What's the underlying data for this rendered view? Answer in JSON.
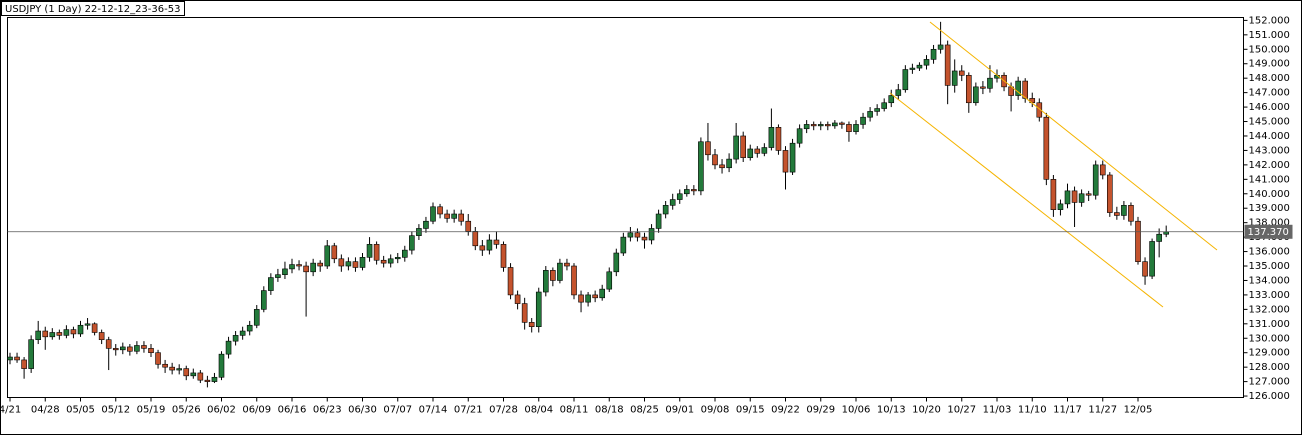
{
  "chart_data": {
    "type": "candlestick",
    "title": "USDJPY (1 Day) 22-12-12_23-36-53",
    "categories": [
      "4/21",
      null,
      null,
      null,
      null,
      "04/28",
      null,
      null,
      null,
      null,
      "05/05",
      null,
      null,
      null,
      null,
      "05/12",
      null,
      null,
      null,
      null,
      "05/19",
      null,
      null,
      null,
      null,
      "05/26",
      null,
      null,
      null,
      null,
      "06/02",
      null,
      null,
      null,
      null,
      "06/09",
      null,
      null,
      null,
      null,
      "06/16",
      null,
      null,
      null,
      null,
      "06/23",
      null,
      null,
      null,
      null,
      "06/30",
      null,
      null,
      null,
      null,
      "07/07",
      null,
      null,
      null,
      null,
      "07/14",
      null,
      null,
      null,
      null,
      "07/21",
      null,
      null,
      null,
      null,
      "07/28",
      null,
      null,
      null,
      null,
      "08/04",
      null,
      null,
      null,
      null,
      "08/11",
      null,
      null,
      null,
      null,
      "08/18",
      null,
      null,
      null,
      null,
      "08/25",
      null,
      null,
      null,
      null,
      "09/01",
      null,
      null,
      null,
      null,
      "09/08",
      null,
      null,
      null,
      null,
      "09/15",
      null,
      null,
      null,
      null,
      "09/22",
      null,
      null,
      null,
      null,
      "09/29",
      null,
      null,
      null,
      null,
      "10/06",
      null,
      null,
      null,
      null,
      "10/13",
      null,
      null,
      null,
      null,
      "10/20",
      null,
      null,
      null,
      null,
      "10/27",
      null,
      null,
      null,
      null,
      "11/03",
      null,
      null,
      null,
      null,
      "11/10",
      null,
      null,
      null,
      null,
      "11/17",
      null,
      null,
      null,
      null,
      "11/27",
      null,
      null,
      null,
      null,
      "12/05",
      null,
      null,
      null,
      null
    ],
    "open": [
      128.5,
      128.7,
      128.5,
      127.9,
      129.9,
      130.5,
      130.1,
      130.4,
      130.2,
      130.6,
      130.3,
      130.9,
      131.0,
      130.4,
      129.9,
      129.3,
      129.2,
      129.4,
      129.1,
      129.5,
      129.3,
      129.0,
      128.2,
      128.0,
      127.8,
      127.9,
      127.4,
      127.6,
      127.1,
      127.0,
      127.3,
      128.9,
      129.8,
      130.2,
      130.5,
      130.9,
      132.0,
      133.3,
      134.2,
      134.4,
      134.8,
      135.1,
      135.0,
      134.6,
      135.2,
      135.0,
      136.4,
      135.5,
      135.0,
      135.3,
      134.9,
      135.6,
      136.5,
      135.4,
      135.2,
      135.5,
      135.6,
      136.1,
      137.1,
      137.6,
      138.1,
      139.1,
      138.6,
      138.3,
      138.6,
      138.1,
      137.4,
      136.4,
      136.1,
      136.8,
      136.5,
      134.9,
      133.0,
      132.4,
      131.1,
      130.8,
      133.2,
      134.7,
      134.0,
      135.2,
      135.0,
      133.0,
      132.5,
      133.0,
      132.8,
      133.4,
      134.6,
      135.9,
      137.0,
      137.3,
      137.0,
      136.8,
      137.6,
      138.6,
      139.2,
      139.6,
      140.0,
      140.3,
      140.2,
      143.6,
      142.7,
      142.0,
      141.8,
      142.4,
      144.0,
      142.5,
      143.1,
      142.8,
      143.2,
      144.6,
      143.0,
      141.5,
      143.5,
      144.5,
      144.8,
      144.7,
      144.8,
      144.7,
      144.9,
      144.8,
      144.3,
      144.8,
      145.3,
      145.7,
      145.9,
      146.3,
      146.8,
      147.2,
      148.6,
      148.7,
      148.9,
      149.3,
      150.0,
      150.3,
      147.5,
      148.5,
      148.2,
      146.3,
      147.4,
      147.3,
      148.0,
      148.2,
      147.4,
      146.8,
      147.8,
      146.6,
      146.3,
      145.3,
      141.0,
      138.9,
      139.3,
      140.2,
      139.4,
      140.0,
      139.9,
      142.0,
      141.3,
      138.7,
      138.5,
      139.2,
      138.1,
      135.3,
      134.3,
      136.7,
      137.2
    ],
    "high": [
      129.0,
      129.0,
      128.7,
      130.2,
      131.2,
      130.8,
      130.7,
      130.6,
      130.9,
      130.8,
      131.2,
      131.4,
      131.1,
      130.6,
      130.1,
      129.6,
      129.7,
      129.6,
      129.8,
      129.8,
      129.6,
      129.2,
      128.5,
      128.3,
      128.2,
      128.1,
      127.9,
      127.8,
      127.4,
      127.6,
      129.1,
      130.1,
      130.5,
      130.8,
      131.2,
      132.3,
      133.6,
      134.5,
      134.8,
      135.3,
      135.5,
      135.4,
      135.3,
      135.5,
      135.4,
      136.8,
      136.6,
      135.8,
      135.6,
      135.6,
      135.9,
      137.0,
      136.7,
      135.7,
      135.8,
      135.9,
      136.4,
      137.4,
      137.9,
      138.4,
      139.4,
      139.3,
      138.9,
      138.9,
      138.9,
      138.6,
      137.7,
      136.8,
      137.2,
      137.4,
      136.7,
      135.2,
      133.3,
      132.8,
      131.4,
      133.5,
      135.0,
      134.9,
      135.5,
      135.5,
      135.2,
      133.3,
      133.2,
      133.3,
      133.7,
      134.9,
      136.2,
      137.3,
      137.7,
      137.6,
      137.3,
      137.9,
      138.9,
      139.5,
      140.0,
      140.3,
      140.6,
      140.6,
      143.9,
      144.9,
      143.1,
      142.4,
      142.8,
      144.9,
      144.3,
      143.4,
      143.3,
      143.5,
      145.9,
      144.8,
      143.3,
      143.8,
      144.8,
      145.1,
      145.0,
      145.0,
      145.0,
      145.1,
      145.0,
      145.0,
      145.1,
      145.6,
      146.0,
      146.2,
      146.6,
      147.2,
      147.6,
      148.9,
      149.0,
      149.1,
      149.6,
      150.3,
      151.9,
      150.6,
      149.3,
      148.9,
      148.4,
      147.7,
      147.8,
      148.9,
      148.6,
      148.4,
      147.7,
      148.1,
      148.0,
      147.0,
      146.6,
      145.6,
      141.3,
      139.6,
      140.7,
      140.5,
      140.3,
      140.2,
      142.3,
      142.3,
      141.5,
      139.1,
      139.5,
      139.4,
      138.4,
      135.6,
      136.9,
      137.6,
      137.8
    ],
    "low": [
      128.2,
      128.3,
      127.2,
      127.6,
      129.6,
      129.2,
      129.9,
      129.9,
      130.0,
      130.0,
      130.1,
      130.6,
      130.2,
      129.6,
      127.8,
      128.8,
      128.9,
      128.8,
      128.9,
      129.0,
      128.7,
      127.9,
      127.6,
      127.5,
      127.5,
      127.1,
      127.2,
      126.9,
      126.6,
      126.9,
      127.1,
      128.6,
      129.5,
      129.9,
      130.2,
      130.7,
      131.8,
      133.0,
      133.9,
      134.1,
      134.5,
      134.7,
      131.5,
      134.3,
      134.6,
      134.8,
      135.2,
      134.6,
      134.7,
      134.6,
      134.7,
      135.3,
      135.1,
      134.9,
      134.9,
      135.2,
      135.3,
      135.8,
      136.8,
      137.3,
      137.9,
      138.3,
      138.0,
      138.0,
      137.8,
      137.1,
      136.1,
      135.7,
      135.8,
      136.2,
      134.6,
      132.7,
      132.0,
      130.6,
      130.4,
      130.4,
      132.9,
      133.6,
      133.8,
      134.7,
      132.7,
      131.8,
      132.2,
      132.5,
      132.6,
      133.2,
      134.3,
      135.7,
      136.7,
      136.7,
      136.2,
      136.5,
      137.3,
      138.3,
      138.9,
      139.3,
      139.8,
      139.9,
      139.9,
      142.3,
      141.7,
      141.4,
      141.5,
      142.1,
      142.2,
      142.3,
      142.5,
      142.6,
      143.0,
      142.7,
      140.3,
      141.3,
      143.2,
      144.2,
      144.4,
      144.4,
      144.4,
      144.5,
      144.5,
      143.6,
      144.1,
      144.5,
      145.0,
      145.4,
      145.7,
      146.0,
      146.5,
      147.0,
      148.3,
      148.5,
      148.6,
      149.0,
      149.7,
      146.2,
      147.0,
      147.8,
      145.6,
      146.1,
      146.9,
      147.0,
      147.7,
      147.1,
      145.7,
      146.5,
      146.3,
      146.0,
      145.0,
      140.6,
      138.4,
      138.5,
      139.0,
      137.7,
      139.1,
      139.5,
      139.6,
      141.0,
      138.4,
      138.2,
      138.2,
      137.8,
      135.1,
      133.7,
      134.1,
      135.6,
      137.0
    ],
    "close": [
      128.7,
      128.5,
      127.9,
      129.9,
      130.5,
      130.1,
      130.4,
      130.2,
      130.6,
      130.3,
      130.9,
      131.0,
      130.4,
      129.9,
      129.3,
      129.2,
      129.4,
      129.1,
      129.5,
      129.3,
      129.0,
      128.2,
      128.0,
      127.8,
      127.9,
      127.4,
      127.6,
      127.1,
      127.0,
      127.3,
      128.9,
      129.8,
      130.2,
      130.5,
      130.9,
      132.0,
      133.3,
      134.2,
      134.4,
      134.8,
      135.1,
      135.0,
      134.6,
      135.2,
      135.0,
      136.4,
      135.5,
      135.0,
      135.3,
      134.9,
      135.6,
      136.5,
      135.4,
      135.2,
      135.5,
      135.6,
      136.1,
      137.1,
      137.6,
      138.1,
      139.1,
      138.6,
      138.3,
      138.6,
      138.1,
      137.4,
      136.4,
      136.1,
      136.8,
      136.5,
      134.9,
      133.0,
      132.4,
      131.1,
      130.8,
      133.2,
      134.7,
      134.0,
      135.2,
      135.0,
      133.0,
      132.5,
      133.0,
      132.8,
      133.4,
      134.6,
      135.9,
      137.0,
      137.3,
      137.0,
      136.8,
      137.6,
      138.6,
      139.2,
      139.6,
      140.0,
      140.3,
      140.2,
      143.6,
      142.7,
      142.0,
      141.8,
      142.4,
      144.0,
      142.5,
      143.1,
      142.8,
      143.2,
      144.6,
      143.0,
      141.5,
      143.5,
      144.5,
      144.8,
      144.7,
      144.8,
      144.7,
      144.9,
      144.8,
      144.3,
      144.8,
      145.3,
      145.7,
      145.9,
      146.3,
      146.8,
      147.2,
      148.6,
      148.7,
      148.9,
      149.3,
      150.0,
      150.3,
      147.5,
      148.5,
      148.2,
      146.3,
      147.4,
      147.3,
      148.0,
      148.2,
      147.4,
      146.8,
      147.8,
      146.6,
      146.3,
      145.3,
      141.0,
      138.9,
      139.3,
      140.2,
      139.4,
      140.0,
      139.9,
      142.0,
      141.3,
      138.7,
      138.5,
      139.2,
      138.1,
      135.3,
      134.3,
      136.7,
      137.2,
      137.37
    ],
    "up_color": "#237a3b",
    "down_color": "#c4532d",
    "current_price": {
      "value": 137.37,
      "label": "137.370"
    },
    "ylim": [
      125.9,
      152.2
    ],
    "yticks": [
      {
        "value": 126,
        "label": "126.000"
      },
      {
        "value": 127,
        "label": "127.000"
      },
      {
        "value": 128,
        "label": "128.000"
      },
      {
        "value": 129,
        "label": "129.000"
      },
      {
        "value": 130,
        "label": "130.000"
      },
      {
        "value": 131,
        "label": "131.000"
      },
      {
        "value": 132,
        "label": "132.000"
      },
      {
        "value": 133,
        "label": "133.000"
      },
      {
        "value": 134,
        "label": "134.000"
      },
      {
        "value": 135,
        "label": "135.000"
      },
      {
        "value": 136,
        "label": "136.000"
      },
      {
        "value": 137,
        "label": "137.000"
      },
      {
        "value": 138,
        "label": "138.000"
      },
      {
        "value": 139,
        "label": "139.000"
      },
      {
        "value": 140,
        "label": "140.000"
      },
      {
        "value": 141,
        "label": "141.000"
      },
      {
        "value": 142,
        "label": "142.000"
      },
      {
        "value": 143,
        "label": "143.000"
      },
      {
        "value": 144,
        "label": "144.000"
      },
      {
        "value": 145,
        "label": "145.000"
      },
      {
        "value": 146,
        "label": "146.000"
      },
      {
        "value": 147,
        "label": "147.000"
      },
      {
        "value": 148,
        "label": "148.000"
      },
      {
        "value": 149,
        "label": "149.000"
      },
      {
        "value": 150,
        "label": "150.000"
      },
      {
        "value": 151,
        "label": "151.000"
      },
      {
        "value": 152,
        "label": "152.000"
      }
    ]
  }
}
